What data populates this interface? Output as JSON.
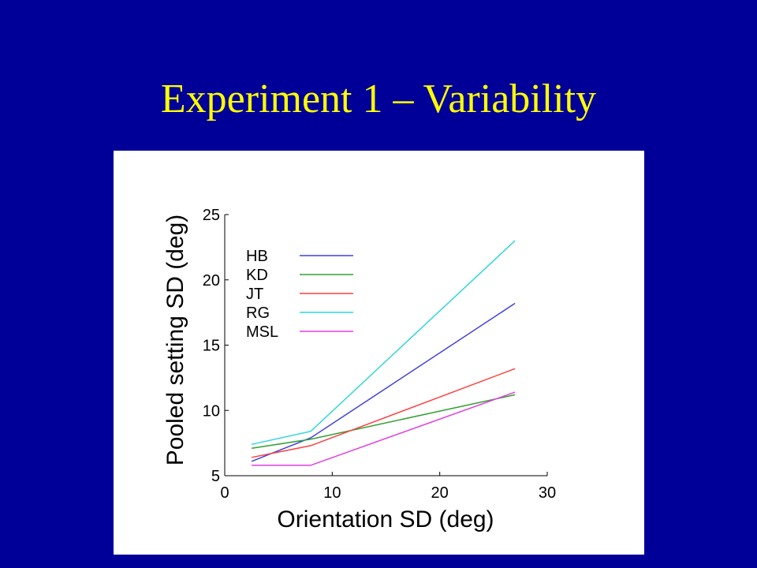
{
  "slide": {
    "title": "Experiment 1 – Variability"
  },
  "chart_data": {
    "type": "line",
    "xlabel": "Orientation SD (deg)",
    "ylabel": "Pooled setting SD (deg)",
    "xlim": [
      0,
      30
    ],
    "ylim": [
      5,
      25
    ],
    "xticks": [
      0,
      10,
      20,
      30
    ],
    "yticks": [
      5,
      10,
      15,
      20,
      25
    ],
    "grid": false,
    "legend_position": "top-left",
    "x": [
      2.5,
      8,
      27
    ],
    "series": [
      {
        "name": "HB",
        "color": "#4040e0",
        "values": [
          6.1,
          7.9,
          18.2
        ]
      },
      {
        "name": "KD",
        "color": "#33a033",
        "values": [
          7.1,
          7.8,
          11.2
        ]
      },
      {
        "name": "JT",
        "color": "#ff4040",
        "values": [
          6.4,
          7.3,
          13.2
        ]
      },
      {
        "name": "RG",
        "color": "#33d6d6",
        "values": [
          7.4,
          8.4,
          23.0
        ]
      },
      {
        "name": "MSL",
        "color": "#e040e0",
        "values": [
          5.8,
          5.8,
          11.4
        ]
      }
    ]
  }
}
